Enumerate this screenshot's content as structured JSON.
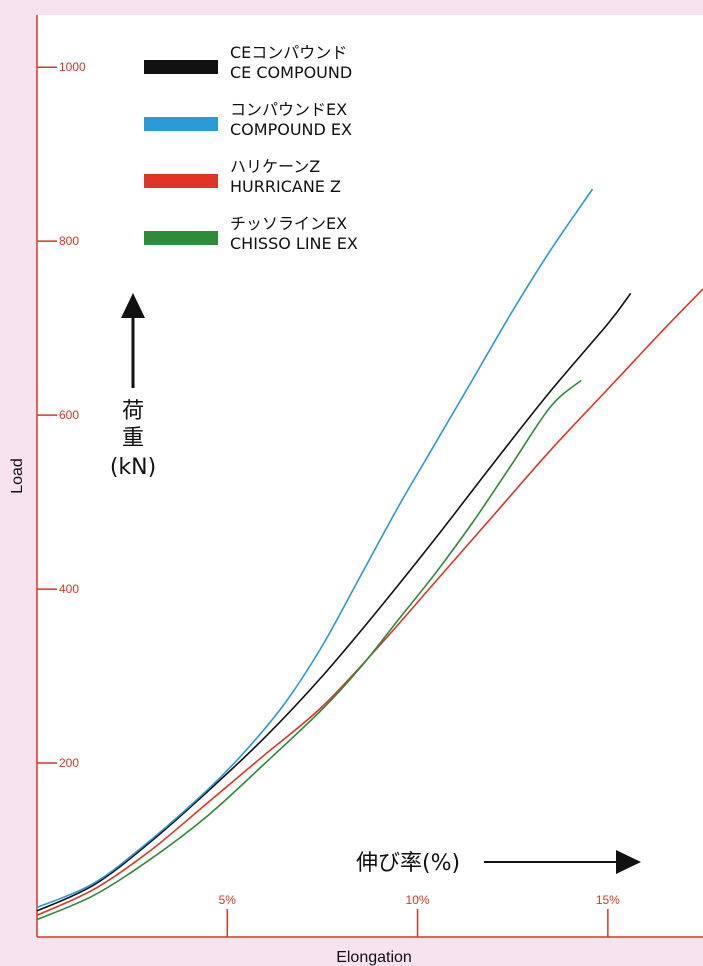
{
  "chart_data": {
    "type": "line",
    "xlabel": "Elongation",
    "ylabel": "Load",
    "x_annotation": "伸び率(%)",
    "y_annotation": {
      "line1": "荷",
      "line2": "重",
      "line3": "(kN)"
    },
    "xlim": [
      0,
      17.5
    ],
    "ylim": [
      0,
      1060
    ],
    "x_ticks": [
      {
        "value": 5,
        "label": "5%"
      },
      {
        "value": 10,
        "label": "10%"
      },
      {
        "value": 15,
        "label": "15%"
      }
    ],
    "y_ticks": [
      {
        "value": 200,
        "label": "200"
      },
      {
        "value": 400,
        "label": "400"
      },
      {
        "value": 600,
        "label": "600"
      },
      {
        "value": 800,
        "label": "800"
      },
      {
        "value": 1000,
        "label": "1000"
      }
    ],
    "grid": false,
    "legend_position": "top-left",
    "series": [
      {
        "name_jp": "CEコンパウンド",
        "name_en": "CE COMPOUND",
        "color": "#111111",
        "points": [
          [
            0,
            30
          ],
          [
            1.5,
            60
          ],
          [
            3,
            110
          ],
          [
            4.5,
            168
          ],
          [
            6,
            230
          ],
          [
            7.5,
            300
          ],
          [
            9,
            378
          ],
          [
            10.5,
            460
          ],
          [
            12,
            545
          ],
          [
            13.5,
            628
          ],
          [
            15,
            705
          ],
          [
            15.6,
            740
          ]
        ]
      },
      {
        "name_jp": "コンパウンドEX",
        "name_en": "COMPOUND EX",
        "color": "#2a9ad8",
        "points": [
          [
            0,
            34
          ],
          [
            1.5,
            62
          ],
          [
            3,
            112
          ],
          [
            4.5,
            170
          ],
          [
            5.5,
            215
          ],
          [
            6.5,
            268
          ],
          [
            7.5,
            335
          ],
          [
            8.5,
            415
          ],
          [
            9.5,
            495
          ],
          [
            10.5,
            570
          ],
          [
            11.5,
            645
          ],
          [
            12.5,
            720
          ],
          [
            13.5,
            790
          ],
          [
            14.6,
            860
          ]
        ]
      },
      {
        "name_jp": "ハリケーンZ",
        "name_en": "HURRICANE Z",
        "color": "#e03526",
        "points": [
          [
            0,
            25
          ],
          [
            1.5,
            55
          ],
          [
            3,
            100
          ],
          [
            4.5,
            155
          ],
          [
            6,
            210
          ],
          [
            7.5,
            265
          ],
          [
            9,
            335
          ],
          [
            10.5,
            410
          ],
          [
            12,
            485
          ],
          [
            13.5,
            560
          ],
          [
            15,
            630
          ],
          [
            16.5,
            700
          ],
          [
            17.5,
            745
          ]
        ]
      },
      {
        "name_jp": "チッソラインEX",
        "name_en": "CHISSO LINE EX",
        "color": "#2e8b3a",
        "points": [
          [
            0,
            20
          ],
          [
            1.5,
            48
          ],
          [
            3,
            90
          ],
          [
            4.5,
            140
          ],
          [
            6,
            200
          ],
          [
            7.5,
            262
          ],
          [
            8.5,
            310
          ],
          [
            9.5,
            365
          ],
          [
            10.5,
            420
          ],
          [
            11.5,
            480
          ],
          [
            12.5,
            545
          ],
          [
            13.5,
            610
          ],
          [
            14.3,
            640
          ]
        ]
      }
    ]
  }
}
